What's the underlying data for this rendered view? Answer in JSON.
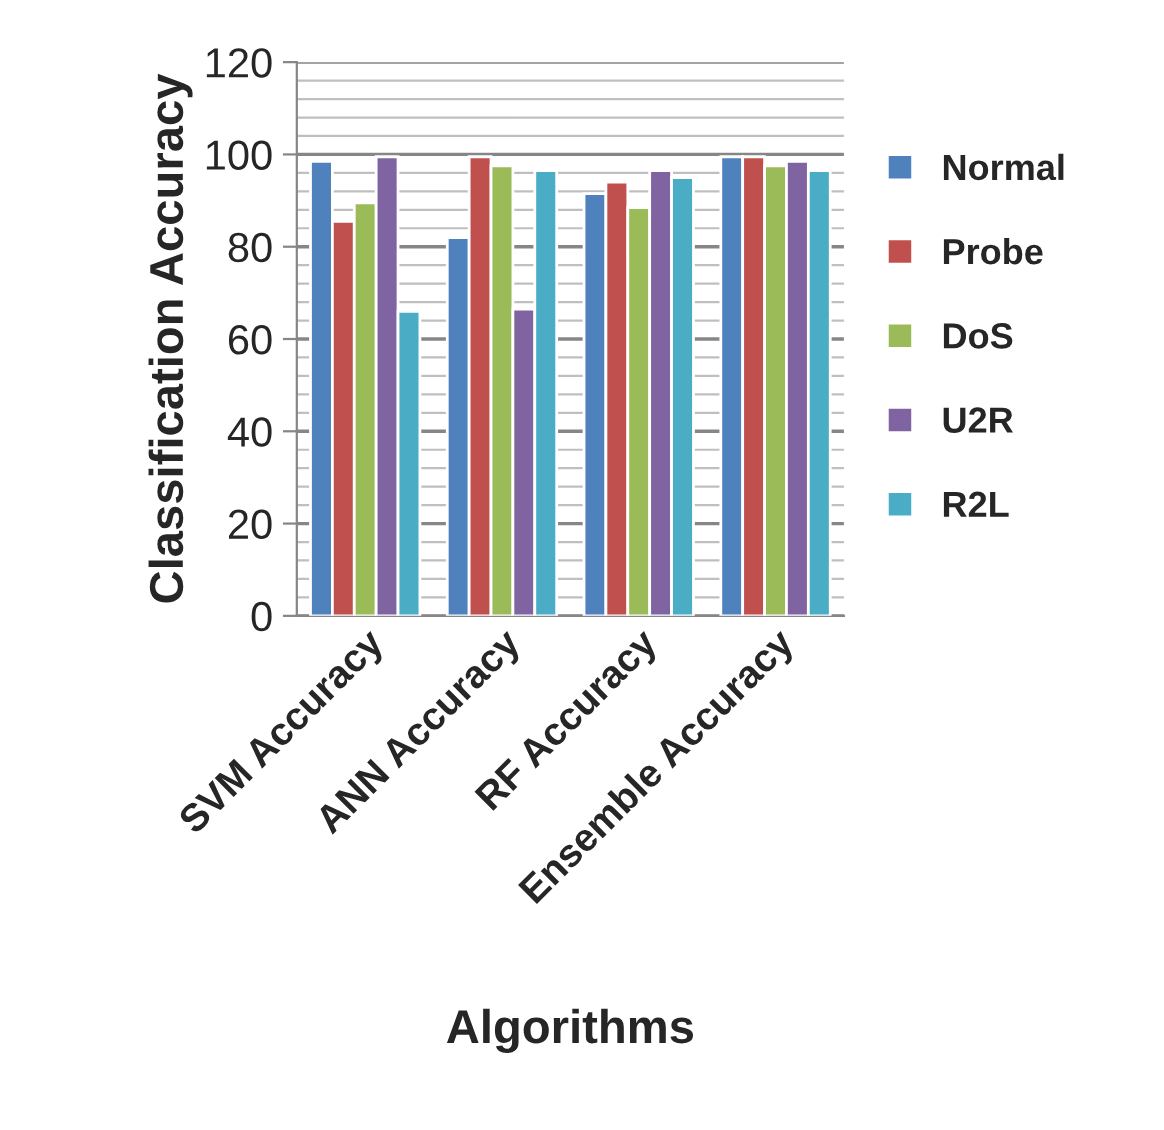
{
  "chart_data": {
    "type": "bar",
    "xlabel": "Algorithms",
    "ylabel": "Classification Accuracy",
    "categories": [
      "SVM Accuracy",
      "ANN Accuracy",
      "RF Accuracy",
      "Ensemble Accuracy"
    ],
    "series": [
      {
        "name": "Normal",
        "color": "#4f81bd",
        "values": [
          98.5,
          82,
          91.5,
          99.5
        ]
      },
      {
        "name": "Probe",
        "color": "#c0504d",
        "values": [
          85.5,
          99.5,
          94,
          99.5
        ]
      },
      {
        "name": "DoS",
        "color": "#9bbb59",
        "values": [
          89.5,
          97.5,
          88.5,
          97.5
        ]
      },
      {
        "name": "U2R",
        "color": "#8064a2",
        "values": [
          99.5,
          66.5,
          96.5,
          98.5
        ]
      },
      {
        "name": "R2L",
        "color": "#4bacc6",
        "values": [
          66,
          96.5,
          95,
          96.5
        ]
      }
    ],
    "ylim": [
      0,
      120
    ],
    "yticks": [
      0,
      20,
      40,
      60,
      80,
      100,
      120
    ],
    "grid": "y",
    "legend": "right"
  }
}
